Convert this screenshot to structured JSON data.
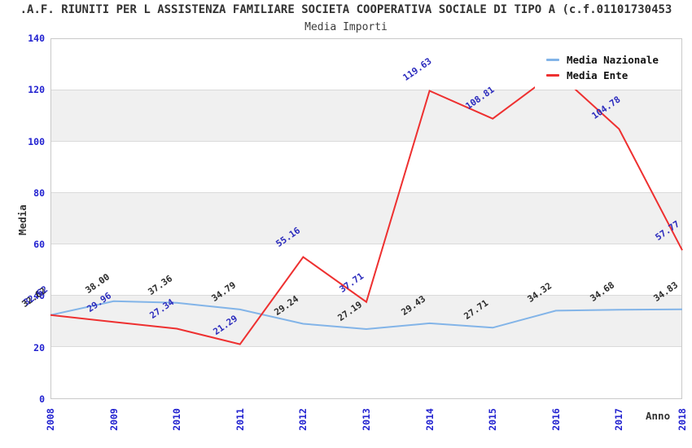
{
  "title": ".A.F. RIUNITI PER L ASSISTENZA FAMILIARE SOCIETA COOPERATIVA SOCIALE DI TIPO A (c.f.01101730453",
  "subtitle": "Media Importi",
  "axes": {
    "y_label": "Media",
    "x_label": "Anno",
    "y_ticks": [
      0,
      20,
      40,
      60,
      80,
      100,
      120,
      140
    ],
    "x_ticks": [
      "2008",
      "2009",
      "2010",
      "2011",
      "2012",
      "2013",
      "2014",
      "2015",
      "2016",
      "2017",
      "2018"
    ]
  },
  "legend": {
    "position": "top-right",
    "items": [
      {
        "label": "Media Nazionale",
        "color": "#82b4e8"
      },
      {
        "label": "Media Ente",
        "color": "#ee3030"
      }
    ]
  },
  "colors": {
    "tick_blue": "#2222d0",
    "nazionale_line": "#82b4e8",
    "ente_line": "#ee3030",
    "nazionale_label": "#2b2b2b",
    "ente_label": "#2b2bbd",
    "band_gray": "#f0f0f0",
    "gridline": "#dadada",
    "plot_border": "#c9c9c9"
  },
  "chart_data": {
    "type": "line",
    "title": "Media Importi",
    "xlabel": "Anno",
    "ylabel": "Media",
    "x": [
      2008,
      2009,
      2010,
      2011,
      2012,
      2013,
      2014,
      2015,
      2016,
      2017,
      2018
    ],
    "ylim": [
      0,
      140
    ],
    "grid": "horizontal gridlines with alternating gray bands every 20 units",
    "legend_position": "top-right, opaque white, overlaps plot",
    "series": [
      {
        "name": "Media Nazionale",
        "color": "#82b4e8",
        "label_color": "#2b2b2b",
        "values": [
          32.62,
          38.0,
          37.36,
          34.79,
          29.24,
          27.19,
          29.43,
          27.71,
          34.32,
          34.68,
          34.83
        ],
        "labels": [
          "32.62",
          "38.00",
          "37.36",
          "34.79",
          "29.24",
          "27.19",
          "29.43",
          "27.71",
          "34.32",
          "34.68",
          "34.83"
        ]
      },
      {
        "name": "Media Ente",
        "color": "#ee3030",
        "label_color": "#2b2bbd",
        "values": [
          32.62,
          29.96,
          27.34,
          21.29,
          55.16,
          37.71,
          119.63,
          108.81,
          127.0,
          104.78,
          57.77
        ],
        "labels": [
          "32.62",
          "29.96",
          "27.34",
          "21.29",
          "55.16",
          "37.71",
          "119.63",
          "108.81",
          "",
          "104.78",
          "57.77"
        ],
        "note_2016": "label hidden behind legend box; value estimated from line peak"
      }
    ]
  }
}
